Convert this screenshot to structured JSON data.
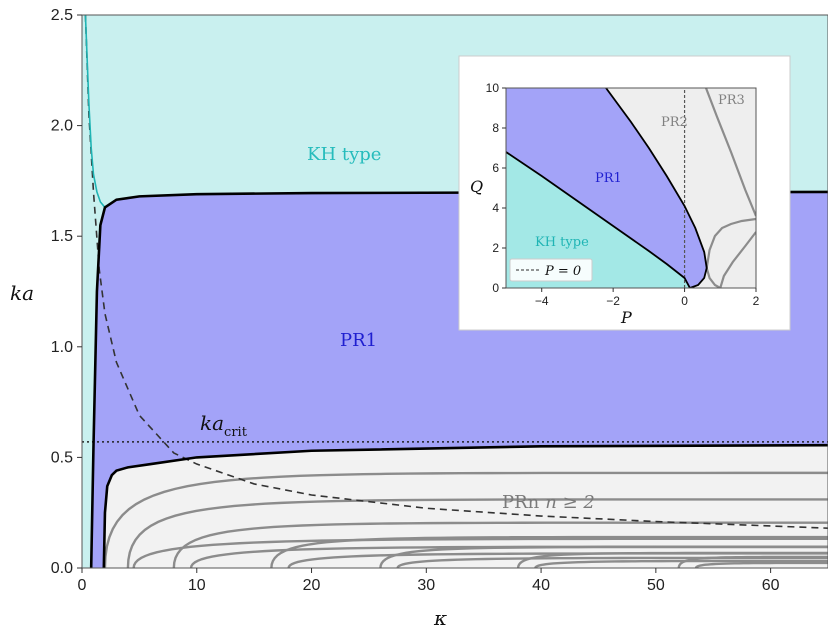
{
  "chart_data": [
    {
      "type": "area",
      "xlabel": "κ",
      "ylabel": "ka",
      "xlim": [
        0,
        65
      ],
      "ylim": [
        0,
        2.5
      ],
      "x_ticks": [
        0,
        10,
        20,
        30,
        40,
        50,
        60
      ],
      "y_ticks": [
        0.0,
        0.5,
        1.0,
        1.5,
        2.0,
        2.5
      ],
      "x_tick_labels": [
        "0",
        "10",
        "20",
        "30",
        "40",
        "50",
        "60"
      ],
      "y_tick_labels": [
        "0.0",
        "0.5",
        "1.0",
        "1.5",
        "2.0",
        "2.5"
      ],
      "regions": [
        {
          "label": "KH type",
          "color": "#c9f0ef",
          "text_color": "#26bcbc"
        },
        {
          "label": "PR1",
          "color": "#a3a3f8",
          "text_color": "#1f1fd0"
        },
        {
          "label": "PRn",
          "label_math": "n ≥ 2",
          "color": "#f2f2f2",
          "text_color": "#7a7a7a"
        }
      ],
      "ka_crit": {
        "label": "ka",
        "subscript": "crit",
        "value": 0.57
      },
      "series": [
        {
          "role": "KH / PR1 boundary",
          "x": [
            0.8,
            1.0,
            1.3,
            1.6,
            2.0,
            3,
            5,
            10,
            20,
            40,
            65
          ],
          "y": [
            0.0,
            0.55,
            1.25,
            1.55,
            1.63,
            1.665,
            1.68,
            1.69,
            1.695,
            1.698,
            1.7
          ]
        },
        {
          "role": "KH boundary (cyan)",
          "x": [
            0.3,
            0.45,
            0.6,
            0.8,
            1.0,
            1.3,
            1.6,
            2.0
          ],
          "y": [
            2.5,
            2.3,
            2.1,
            1.9,
            1.78,
            1.7,
            1.655,
            1.63
          ]
        },
        {
          "role": "PR1 / PRn boundary",
          "x": [
            1.9,
            2.0,
            2.2,
            2.6,
            3,
            4,
            6,
            10,
            20,
            40,
            65
          ],
          "y": [
            0.0,
            0.25,
            0.37,
            0.42,
            0.44,
            0.455,
            0.47,
            0.5,
            0.53,
            0.55,
            0.555
          ]
        },
        {
          "role": "dashed decaying curve",
          "x": [
            0.3,
            0.6,
            1.0,
            1.5,
            2,
            3,
            5,
            8,
            10,
            15,
            20,
            30,
            40,
            50,
            65
          ],
          "y": [
            2.5,
            2.05,
            1.7,
            1.35,
            1.15,
            0.93,
            0.69,
            0.52,
            0.47,
            0.38,
            0.33,
            0.27,
            0.235,
            0.21,
            0.18
          ]
        }
      ],
      "grey_branches": [
        {
          "x0": 2.0,
          "y_top": 0.43,
          "kind": "upper"
        },
        {
          "x0": 4.0,
          "y_top": 0.31,
          "kind": "upper"
        },
        {
          "x0": 4.5,
          "y_top": 0.24,
          "kind": "lower"
        },
        {
          "x0": 8.0,
          "y_top": 0.205,
          "kind": "upper"
        },
        {
          "x0": 9.5,
          "y_top": 0.175,
          "kind": "lower"
        },
        {
          "x0": 16.5,
          "y_top": 0.14,
          "kind": "upper"
        },
        {
          "x0": 18.0,
          "y_top": 0.12,
          "kind": "lower"
        },
        {
          "x0": 26.0,
          "y_top": 0.095,
          "kind": "upper"
        },
        {
          "x0": 27.5,
          "y_top": 0.083,
          "kind": "lower"
        },
        {
          "x0": 38.0,
          "y_top": 0.068,
          "kind": "upper"
        },
        {
          "x0": 39.5,
          "y_top": 0.058,
          "kind": "lower"
        },
        {
          "x0": 52.0,
          "y_top": 0.05,
          "kind": "upper"
        },
        {
          "x0": 53.5,
          "y_top": 0.042,
          "kind": "lower"
        }
      ]
    },
    {
      "type": "area",
      "name": "inset",
      "xlabel": "P",
      "ylabel": "Q",
      "xlim": [
        -5,
        2
      ],
      "ylim": [
        0,
        10
      ],
      "x_ticks": [
        -4,
        -2,
        0,
        2
      ],
      "y_ticks": [
        0,
        2,
        4,
        6,
        8,
        10
      ],
      "x_tick_labels": [
        "−4",
        "−2",
        "0",
        "2"
      ],
      "y_tick_labels": [
        "0",
        "2",
        "4",
        "6",
        "8",
        "10"
      ],
      "regions": [
        {
          "label": "KH type",
          "color": "#a3e8e6",
          "text_color": "#1fb4b4"
        },
        {
          "label": "PR1",
          "color": "#a3a3f8",
          "text_color": "#1f1fd0"
        },
        {
          "label": "PR2",
          "color": "#eeeeee",
          "text_color": "#808080"
        },
        {
          "label": "PR3",
          "color": "#eeeeee",
          "text_color": "#808080"
        }
      ],
      "legend": {
        "label": "P = 0",
        "style": "dashed",
        "placement": "bottom-left"
      },
      "series": [
        {
          "role": "KH / PR1 boundary",
          "x": [
            -5,
            -4,
            -3,
            -2,
            -1,
            -0.5,
            0,
            0.15
          ],
          "y": [
            6.8,
            5.6,
            4.35,
            3.1,
            1.85,
            1.2,
            0.5,
            0.0
          ]
        },
        {
          "role": "PR1 outer boundary",
          "x": [
            -2.2,
            -1.5,
            -1,
            -0.5,
            0,
            0.3,
            0.55,
            0.62,
            0.55,
            0.38,
            0.15
          ],
          "y": [
            10,
            8.3,
            7.0,
            5.6,
            4.1,
            3.0,
            1.8,
            1.0,
            0.5,
            0.15,
            0.0
          ]
        },
        {
          "role": "PR3 grey curve",
          "x": [
            0.6,
            0.9,
            1.3,
            1.7,
            2.0
          ],
          "y": [
            10,
            8.6,
            6.8,
            4.9,
            3.6
          ]
        },
        {
          "role": "PR3 lower upper-branch",
          "x": [
            1.0,
            1.1,
            1.35,
            1.7,
            2.0
          ],
          "y": [
            0.0,
            0.6,
            1.3,
            2.1,
            2.8
          ]
        },
        {
          "role": "PR3 lower lower-branch",
          "x": [
            1.0,
            1.1,
            1.35,
            1.7,
            2.0
          ],
          "y": [
            0.0,
            -0.2,
            -0.2,
            -0.2,
            -0.2
          ]
        }
      ],
      "extra_curve_top": {
        "x": [
          0.62,
          0.7,
          0.85,
          1.05,
          1.3,
          1.6,
          2.0
        ],
        "y": [
          1.0,
          1.9,
          2.6,
          3.0,
          3.2,
          3.35,
          3.45
        ]
      },
      "extra_curve_bot": {
        "x": [
          0.62,
          0.7,
          0.85,
          1.0
        ],
        "y": [
          1.0,
          0.5,
          0.15,
          0.0
        ]
      }
    }
  ]
}
